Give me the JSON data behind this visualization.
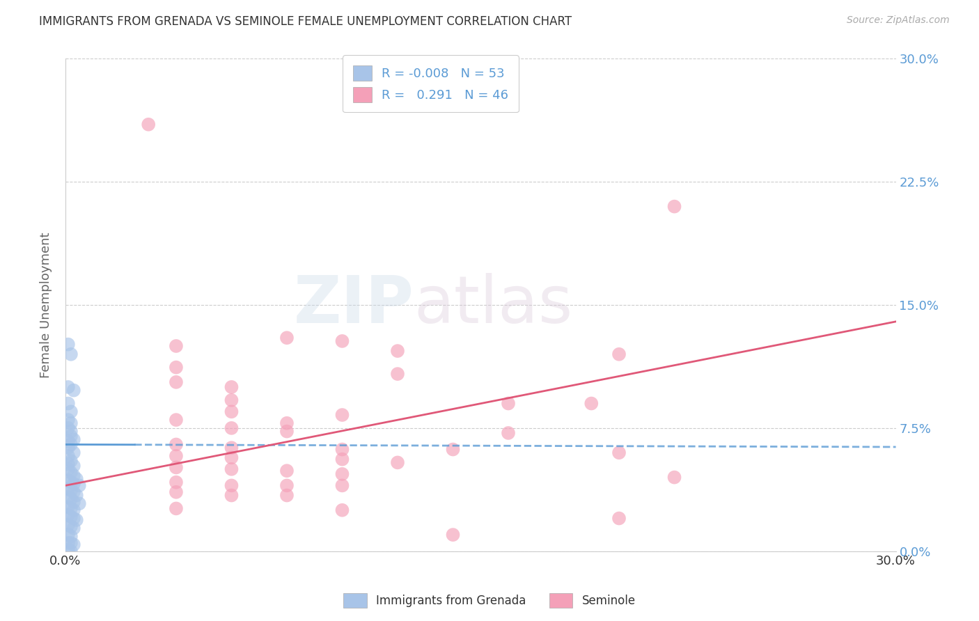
{
  "title": "IMMIGRANTS FROM GRENADA VS SEMINOLE FEMALE UNEMPLOYMENT CORRELATION CHART",
  "source": "Source: ZipAtlas.com",
  "ylabel": "Female Unemployment",
  "watermark": "ZIPatlas",
  "legend_label1": "Immigrants from Grenada",
  "legend_label2": "Seminole",
  "r1": -0.008,
  "n1": 53,
  "r2": 0.291,
  "n2": 46,
  "xlim": [
    0.0,
    0.3
  ],
  "ylim": [
    0.0,
    0.3
  ],
  "yticks": [
    0.0,
    0.075,
    0.15,
    0.225,
    0.3
  ],
  "ytick_labels": [
    "0.0%",
    "7.5%",
    "15.0%",
    "22.5%",
    "30.0%"
  ],
  "xtick_labels": [
    "0.0%",
    "30.0%"
  ],
  "xticks": [
    0.0,
    0.3
  ],
  "color1": "#a8c4e8",
  "color2": "#f4a0b8",
  "line_color1": "#5b9bd5",
  "line_color2": "#e05878",
  "background_color": "#ffffff",
  "title_color": "#333333",
  "axis_label_color": "#666666",
  "blue_scatter": [
    [
      0.001,
      0.126
    ],
    [
      0.002,
      0.12
    ],
    [
      0.001,
      0.1
    ],
    [
      0.003,
      0.098
    ],
    [
      0.001,
      0.09
    ],
    [
      0.002,
      0.085
    ],
    [
      0.001,
      0.08
    ],
    [
      0.002,
      0.078
    ],
    [
      0.001,
      0.075
    ],
    [
      0.002,
      0.073
    ],
    [
      0.002,
      0.07
    ],
    [
      0.003,
      0.068
    ],
    [
      0.001,
      0.067
    ],
    [
      0.002,
      0.065
    ],
    [
      0.001,
      0.063
    ],
    [
      0.003,
      0.06
    ],
    [
      0.001,
      0.058
    ],
    [
      0.002,
      0.055
    ],
    [
      0.001,
      0.053
    ],
    [
      0.003,
      0.052
    ],
    [
      0.001,
      0.05
    ],
    [
      0.002,
      0.048
    ],
    [
      0.003,
      0.046
    ],
    [
      0.004,
      0.044
    ],
    [
      0.001,
      0.043
    ],
    [
      0.002,
      0.042
    ],
    [
      0.003,
      0.041
    ],
    [
      0.005,
      0.04
    ],
    [
      0.001,
      0.038
    ],
    [
      0.002,
      0.037
    ],
    [
      0.003,
      0.036
    ],
    [
      0.004,
      0.034
    ],
    [
      0.001,
      0.033
    ],
    [
      0.002,
      0.032
    ],
    [
      0.003,
      0.03
    ],
    [
      0.005,
      0.029
    ],
    [
      0.001,
      0.027
    ],
    [
      0.002,
      0.026
    ],
    [
      0.003,
      0.025
    ],
    [
      0.001,
      0.022
    ],
    [
      0.002,
      0.021
    ],
    [
      0.003,
      0.02
    ],
    [
      0.004,
      0.019
    ],
    [
      0.001,
      0.016
    ],
    [
      0.002,
      0.015
    ],
    [
      0.003,
      0.014
    ],
    [
      0.001,
      0.01
    ],
    [
      0.002,
      0.009
    ],
    [
      0.001,
      0.005
    ],
    [
      0.002,
      0.005
    ],
    [
      0.003,
      0.004
    ],
    [
      0.001,
      0.001
    ],
    [
      0.002,
      0.0
    ]
  ],
  "pink_scatter": [
    [
      0.03,
      0.26
    ],
    [
      0.22,
      0.21
    ],
    [
      0.08,
      0.13
    ],
    [
      0.1,
      0.128
    ],
    [
      0.04,
      0.125
    ],
    [
      0.12,
      0.122
    ],
    [
      0.2,
      0.12
    ],
    [
      0.04,
      0.112
    ],
    [
      0.12,
      0.108
    ],
    [
      0.04,
      0.103
    ],
    [
      0.06,
      0.1
    ],
    [
      0.06,
      0.092
    ],
    [
      0.16,
      0.09
    ],
    [
      0.19,
      0.09
    ],
    [
      0.06,
      0.085
    ],
    [
      0.1,
      0.083
    ],
    [
      0.04,
      0.08
    ],
    [
      0.08,
      0.078
    ],
    [
      0.06,
      0.075
    ],
    [
      0.08,
      0.073
    ],
    [
      0.16,
      0.072
    ],
    [
      0.04,
      0.065
    ],
    [
      0.06,
      0.063
    ],
    [
      0.1,
      0.062
    ],
    [
      0.14,
      0.062
    ],
    [
      0.2,
      0.06
    ],
    [
      0.04,
      0.058
    ],
    [
      0.06,
      0.057
    ],
    [
      0.1,
      0.056
    ],
    [
      0.12,
      0.054
    ],
    [
      0.04,
      0.051
    ],
    [
      0.06,
      0.05
    ],
    [
      0.08,
      0.049
    ],
    [
      0.1,
      0.047
    ],
    [
      0.22,
      0.045
    ],
    [
      0.04,
      0.042
    ],
    [
      0.06,
      0.04
    ],
    [
      0.08,
      0.04
    ],
    [
      0.1,
      0.04
    ],
    [
      0.04,
      0.036
    ],
    [
      0.06,
      0.034
    ],
    [
      0.08,
      0.034
    ],
    [
      0.04,
      0.026
    ],
    [
      0.1,
      0.025
    ],
    [
      0.2,
      0.02
    ],
    [
      0.14,
      0.01
    ]
  ],
  "blue_line_solid_end": 0.025,
  "blue_line_intercept": 0.065,
  "blue_line_slope": -0.005,
  "pink_line_intercept": 0.04,
  "pink_line_slope": 0.333
}
